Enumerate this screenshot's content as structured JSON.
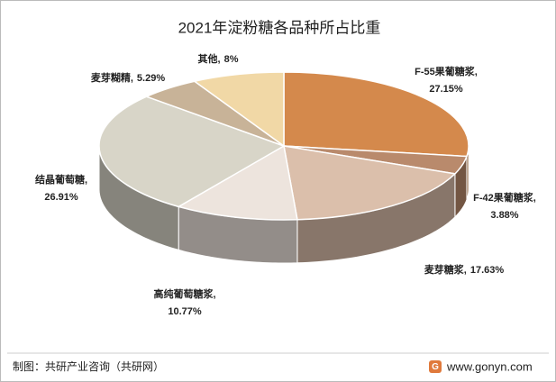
{
  "chart_data": {
    "type": "pie3d",
    "title": "2021年淀粉糖各品种所占比重",
    "categories": [
      "F-55果葡糖浆,",
      "F-42果葡糖浆,",
      "麦芽糖浆,",
      "高纯葡萄糖浆,",
      "结晶葡萄糖,",
      "麦芽糊精,",
      "其他,"
    ],
    "values": [
      27.15,
      3.88,
      17.63,
      10.77,
      26.91,
      5.29,
      8
    ],
    "value_labels": [
      "27.15%",
      "3.88%",
      "17.63%",
      "10.77%",
      "26.91%",
      "5.29%",
      "8%"
    ],
    "colors": [
      "#d4894c",
      "#b98a6c",
      "#dbbfab",
      "#ede4dd",
      "#d8d5c8",
      "#c8b398",
      "#f1d8a6"
    ],
    "source": "制图：共研产业咨询（共研网）",
    "website": "www.gonyn.com"
  }
}
